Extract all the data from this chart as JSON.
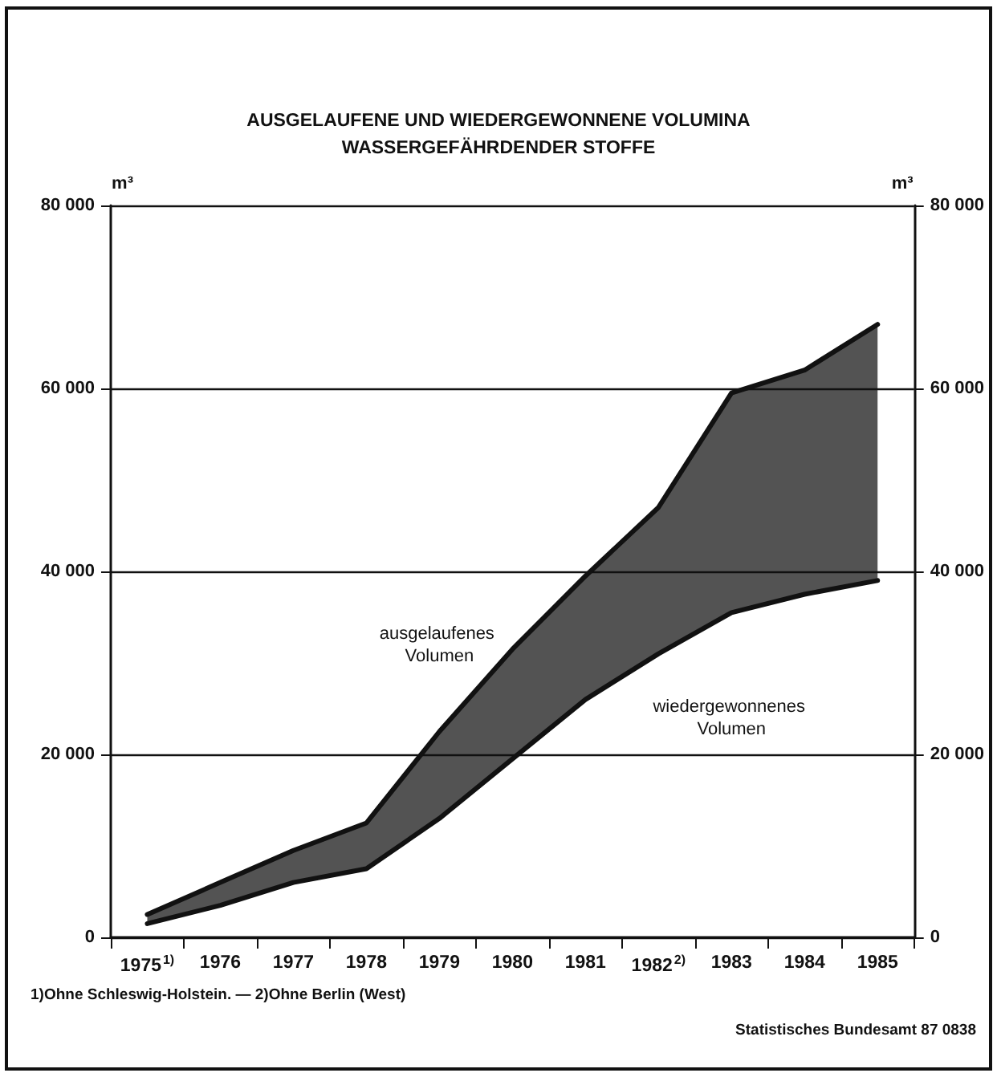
{
  "chart_data": {
    "type": "area",
    "title": "AUSGELAUFENE UND WIEDERGEWONNENE VOLUMINA\nWASSERGEFÄHRDENDER STOFFE",
    "ylabel": "m³",
    "y2label": "m³",
    "categories": [
      "1975$^{1)}$",
      "1976",
      "1977",
      "1978",
      "1979",
      "1980",
      "1981",
      "1982$^{2)}$",
      "1983",
      "1984",
      "1985"
    ],
    "series": [
      {
        "name": "ausgelaufenes Volumen",
        "color": "#111111",
        "values": [
          2500,
          6000,
          9500,
          12500,
          22500,
          31500,
          39500,
          47000,
          59500,
          62000,
          67000
        ]
      },
      {
        "name": "wiedergewonnenes Volumen",
        "type": "line",
        "color": "#111111",
        "values": [
          1500,
          3500,
          6000,
          7500,
          13000,
          19500,
          26000,
          31000,
          35500,
          37500,
          39000
        ]
      }
    ],
    "ylim": [
      0,
      80000
    ],
    "yticks": [
      0,
      {
        "value": 20000,
        "label": "20 000"
      },
      {
        "value": 40000,
        "label": "40 000"
      },
      {
        "value": 60000,
        "label": "60 000"
      },
      {
        "value": 80000,
        "label": "80 000"
      }
    ],
    "y2lim": [
      0,
      80000
    ],
    "y2ticks": [
      0,
      {
        "value": 20000,
        "label": "20 000"
      },
      {
        "value": 40000,
        "label": "40 000"
      },
      {
        "value": 60000,
        "label": "60 000"
      },
      {
        "value": 80000,
        "label": "80 000"
      }
    ],
    "grid": "y",
    "legend": false,
    "marker": "none",
    "line_style": "solid",
    "annotations": [
      "1)Ohne Schleswig-Holstein. — 2)Ohne Berlin (West)",
      "Statistisches Bundesamt 87 0838"
    ]
  }
}
